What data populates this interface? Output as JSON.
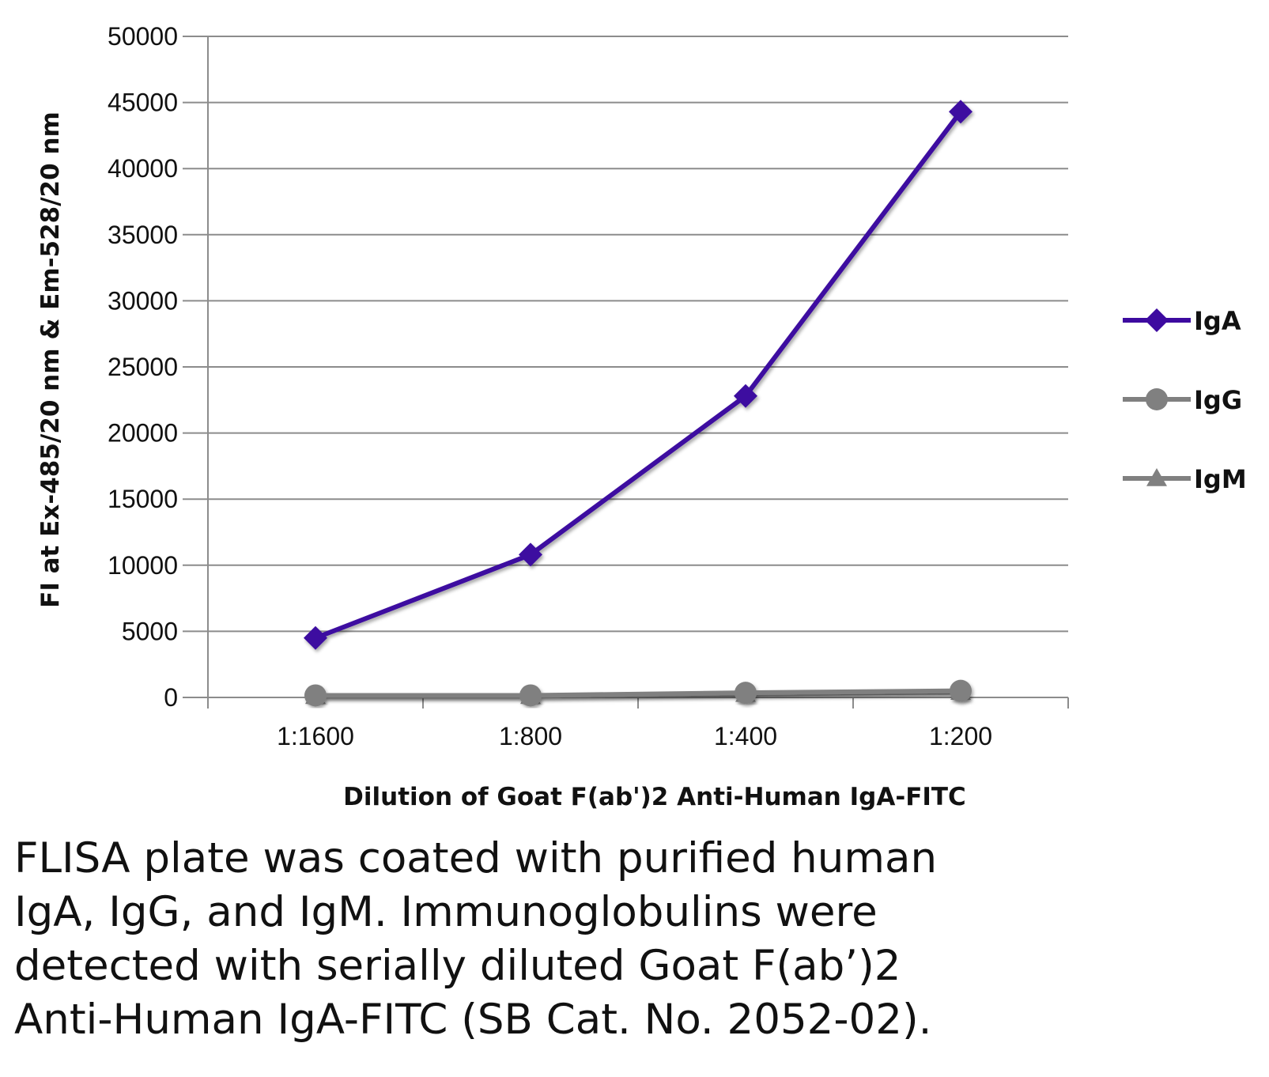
{
  "chart_data": {
    "type": "line",
    "categories": [
      "1:1600",
      "1:800",
      "1:400",
      "1:200"
    ],
    "series": [
      {
        "name": "IgA",
        "values": [
          4500,
          10800,
          22800,
          44300
        ],
        "color": "#3d0aa0",
        "marker": "diamond"
      },
      {
        "name": "IgG",
        "values": [
          150,
          150,
          350,
          500
        ],
        "color": "#808080",
        "marker": "circle"
      },
      {
        "name": "IgM",
        "values": [
          100,
          100,
          250,
          400
        ],
        "color": "#808080",
        "marker": "triangle"
      }
    ],
    "xlabel": "Dilution of Goat F(ab')2 Anti-Human IgA-FITC",
    "ylabel": "FI at Ex-485/20 nm & Em-528/20 nm",
    "ylim": [
      0,
      50000
    ],
    "yticks": [
      0,
      5000,
      10000,
      15000,
      20000,
      25000,
      30000,
      35000,
      40000,
      45000,
      50000
    ],
    "grid": true,
    "legend_position": "right"
  },
  "caption": {
    "lines": [
      "FLISA plate was coated with purified human",
      "IgA, IgG, and IgM.  Immunoglobulins were",
      "detected with serially diluted Goat F(ab’)2",
      "Anti-Human IgA-FITC (SB Cat. No. 2052-02)."
    ]
  }
}
